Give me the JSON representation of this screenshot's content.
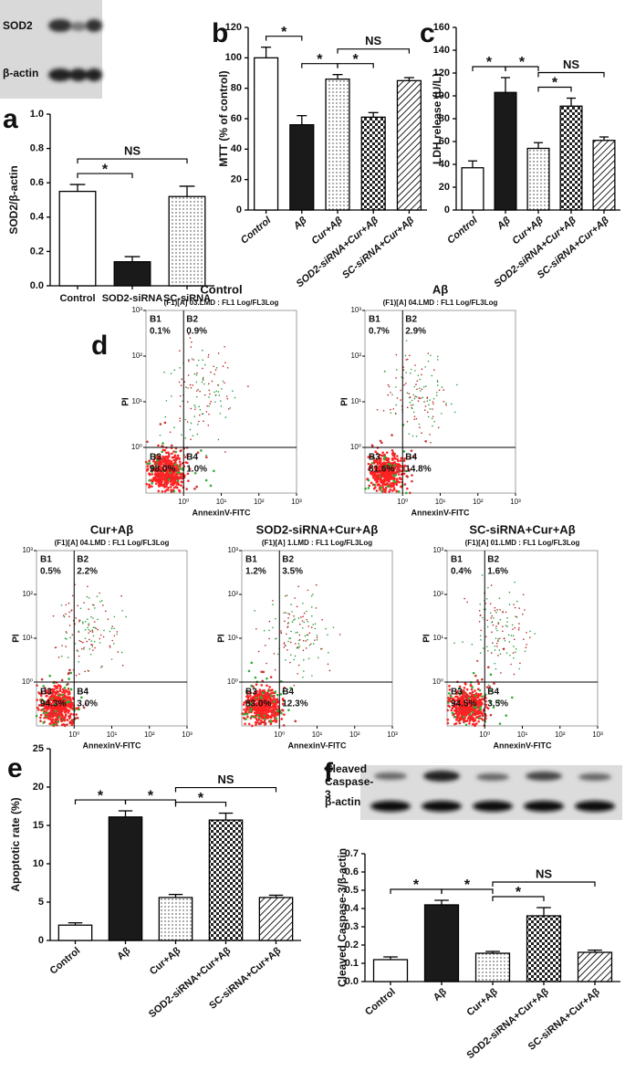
{
  "chart_data": [
    {
      "type": "bar",
      "panel": "a",
      "blot_labels": [
        "SOD2",
        "β-actin"
      ],
      "y_label": "SOD2/β-actin",
      "categories": [
        "Control",
        "SOD2-siRNA",
        "SC-siRNA"
      ],
      "values": [
        0.55,
        0.14,
        0.52
      ],
      "errors": [
        0.04,
        0.03,
        0.06
      ],
      "patterns": [
        "white",
        "black",
        "dots"
      ],
      "ylim": [
        0,
        1.0
      ],
      "yticks": [
        {
          "value": 0,
          "label": "0.0"
        },
        0.2,
        0.4,
        0.6,
        0.8,
        {
          "value": 1,
          "label": "1.0"
        }
      ],
      "brackets": [
        {
          "label": "*",
          "from": 0,
          "to": 1
        },
        {
          "label": "NS",
          "from": 0,
          "to": 2
        }
      ]
    },
    {
      "type": "bar",
      "panel": "b",
      "y_label": "MTT (% of control)",
      "categories": [
        "Control",
        "Aβ",
        "Cur+Aβ",
        "SOD2-siRNA+Cur+Aβ",
        "SC-siRNA+Cur+Aβ"
      ],
      "values": [
        100,
        56,
        86,
        61,
        85
      ],
      "errors": [
        7,
        6,
        3,
        3,
        2
      ],
      "patterns": [
        "white",
        "black",
        "dots",
        "checker",
        "hatch"
      ],
      "ylim": [
        0,
        120
      ],
      "yticks": [
        0,
        20,
        40,
        60,
        80,
        100,
        120
      ],
      "brackets": [
        {
          "label": "*",
          "from": 0,
          "to": 1
        },
        {
          "label": "*",
          "from": 1,
          "to": 2
        },
        {
          "label": "*",
          "from": 2,
          "to": 3
        },
        {
          "label": "NS",
          "from": 2,
          "to": 4
        }
      ]
    },
    {
      "type": "bar",
      "panel": "c",
      "y_label": "LDH release (U/L)",
      "categories": [
        "Control",
        "Aβ",
        "Cur+Aβ",
        "SOD2-siRNA+Cur+Aβ",
        "SC-siRNA+Cur+Aβ"
      ],
      "values": [
        37,
        103,
        54,
        91,
        61
      ],
      "errors": [
        6,
        13,
        5,
        7,
        3
      ],
      "patterns": [
        "white",
        "black",
        "dots",
        "checker",
        "hatch"
      ],
      "ylim": [
        0,
        160
      ],
      "yticks": [
        0,
        20,
        40,
        60,
        80,
        100,
        120,
        140,
        160
      ],
      "brackets": [
        {
          "label": "*",
          "from": 0,
          "to": 1
        },
        {
          "label": "*",
          "from": 1,
          "to": 2
        },
        {
          "label": "*",
          "from": 2,
          "to": 3
        },
        {
          "label": "NS",
          "from": 2,
          "to": 4
        }
      ]
    },
    {
      "type": "flow",
      "panel": "d",
      "title": "Control",
      "subtitle": "(F1)[A] 03.LMD : FL1 Log/FL3Log",
      "x_label": "AnnexinV-FITC",
      "y_label": "PI",
      "log_scale": true,
      "quadrants": [
        "B1",
        "B2",
        "B3",
        "B4"
      ],
      "values": [
        0.1,
        0.9,
        98.0,
        1.0
      ],
      "value_labels": [
        "0.1%",
        "0.9%",
        "98.0%",
        "1.0%"
      ],
      "xlim": [
        0.1,
        1000
      ],
      "ylim": [
        0.1,
        1000
      ],
      "xticks": [
        {
          "value": 1,
          "label": "10⁰"
        },
        {
          "value": 10,
          "label": "10¹"
        },
        {
          "value": 100,
          "label": "10²"
        },
        {
          "value": 1000,
          "label": "10³"
        }
      ],
      "yticks": [
        {
          "value": 1,
          "label": "10⁰"
        },
        {
          "value": 10,
          "label": "10¹"
        },
        {
          "value": 100,
          "label": "10²"
        },
        {
          "value": 1000,
          "label": "10³"
        }
      ]
    },
    {
      "type": "flow",
      "title": "Aβ",
      "subtitle": "(F1)[A] 04.LMD : FL1 Log/FL3Log",
      "x_label": "AnnexinV-FITC",
      "y_label": "PI",
      "log_scale": true,
      "quadrants": [
        "B1",
        "B2",
        "B3",
        "B4"
      ],
      "values": [
        0.7,
        2.9,
        81.6,
        14.8
      ],
      "value_labels": [
        "0.7%",
        "2.9%",
        "81.6%",
        "14.8%"
      ],
      "xlim": [
        0.1,
        1000
      ],
      "ylim": [
        0.1,
        1000
      ],
      "xticks": [
        {
          "value": 1,
          "label": "10⁰"
        },
        {
          "value": 10,
          "label": "10¹"
        },
        {
          "value": 100,
          "label": "10²"
        },
        {
          "value": 1000,
          "label": "10³"
        }
      ],
      "yticks": [
        {
          "value": 1,
          "label": "10⁰"
        },
        {
          "value": 10,
          "label": "10¹"
        },
        {
          "value": 100,
          "label": "10²"
        },
        {
          "value": 1000,
          "label": "10³"
        }
      ]
    },
    {
      "type": "flow",
      "title": "Cur+Aβ",
      "subtitle": "(F1)[A] 04.LMD : FL1 Log/FL3Log",
      "x_label": "AnnexinV-FITC",
      "y_label": "PI",
      "log_scale": true,
      "quadrants": [
        "B1",
        "B2",
        "B3",
        "B4"
      ],
      "values": [
        0.5,
        2.2,
        94.3,
        3.0
      ],
      "value_labels": [
        "0.5%",
        "2.2%",
        "94.3%",
        "3.0%"
      ],
      "xlim": [
        0.1,
        1000
      ],
      "ylim": [
        0.1,
        1000
      ],
      "xticks": [
        {
          "value": 1,
          "label": "10⁰"
        },
        {
          "value": 10,
          "label": "10¹"
        },
        {
          "value": 100,
          "label": "10²"
        },
        {
          "value": 1000,
          "label": "10³"
        }
      ],
      "yticks": [
        {
          "value": 1,
          "label": "10⁰"
        },
        {
          "value": 10,
          "label": "10¹"
        },
        {
          "value": 100,
          "label": "10²"
        },
        {
          "value": 1000,
          "label": "10³"
        }
      ]
    },
    {
      "type": "flow",
      "title": "SOD2-siRNA+Cur+Aβ",
      "subtitle": "(F1)[A] 1.LMD : FL1 Log/FL3Log",
      "x_label": "AnnexinV-FITC",
      "y_label": "PI",
      "log_scale": true,
      "quadrants": [
        "B1",
        "B2",
        "B3",
        "B4"
      ],
      "values": [
        1.2,
        3.5,
        83.0,
        12.3
      ],
      "value_labels": [
        "1.2%",
        "3.5%",
        "83.0%",
        "12.3%"
      ],
      "xlim": [
        0.1,
        1000
      ],
      "ylim": [
        0.1,
        1000
      ],
      "xticks": [
        {
          "value": 1,
          "label": "10⁰"
        },
        {
          "value": 10,
          "label": "10¹"
        },
        {
          "value": 100,
          "label": "10²"
        },
        {
          "value": 1000,
          "label": "10³"
        }
      ],
      "yticks": [
        {
          "value": 1,
          "label": "10⁰"
        },
        {
          "value": 10,
          "label": "10¹"
        },
        {
          "value": 100,
          "label": "10²"
        },
        {
          "value": 1000,
          "label": "10³"
        }
      ]
    },
    {
      "type": "flow",
      "title": "SC-siRNA+Cur+Aβ",
      "subtitle": "(F1)[A] 01.LMD : FL1 Log/FL3Log",
      "x_label": "AnnexinV-FITC",
      "y_label": "PI",
      "log_scale": true,
      "quadrants": [
        "B1",
        "B2",
        "B3",
        "B4"
      ],
      "values": [
        0.4,
        1.6,
        94.5,
        3.5
      ],
      "value_labels": [
        "0.4%",
        "1.6%",
        "94.5%",
        "3.5%"
      ],
      "xlim": [
        0.1,
        1000
      ],
      "ylim": [
        0.1,
        1000
      ],
      "xticks": [
        {
          "value": 1,
          "label": "10⁰"
        },
        {
          "value": 10,
          "label": "10¹"
        },
        {
          "value": 100,
          "label": "10²"
        },
        {
          "value": 1000,
          "label": "10³"
        }
      ],
      "yticks": [
        {
          "value": 1,
          "label": "10⁰"
        },
        {
          "value": 10,
          "label": "10¹"
        },
        {
          "value": 100,
          "label": "10²"
        },
        {
          "value": 1000,
          "label": "10³"
        }
      ]
    },
    {
      "type": "bar",
      "panel": "e",
      "y_label": "Apoptotic rate (%)",
      "categories": [
        "Control",
        "Aβ",
        "Cur+Aβ",
        "SOD2-siRNA+Cur+Aβ",
        "SC-siRNA+Cur+Aβ"
      ],
      "values": [
        2.0,
        16.1,
        5.6,
        15.7,
        5.6
      ],
      "errors": [
        0.3,
        0.8,
        0.4,
        0.9,
        0.3
      ],
      "patterns": [
        "white",
        "black",
        "dots",
        "checker",
        "hatch"
      ],
      "ylim": [
        0,
        25
      ],
      "yticks": [
        0,
        5,
        10,
        15,
        20,
        25
      ],
      "brackets": [
        {
          "label": "*",
          "from": 0,
          "to": 1
        },
        {
          "label": "*",
          "from": 1,
          "to": 2
        },
        {
          "label": "*",
          "from": 2,
          "to": 3
        },
        {
          "label": "NS",
          "from": 2,
          "to": 4
        }
      ]
    },
    {
      "type": "bar",
      "panel": "f",
      "blot_labels": [
        "Cleaved Caspase-3",
        "β-actin"
      ],
      "y_label": "Cleaved Caspase-3/β-actin",
      "categories": [
        "Control",
        "Aβ",
        "Cur+Aβ",
        "SOD2-siRNA+Cur+Aβ",
        "SC-siRNA+Cur+Aβ"
      ],
      "values": [
        0.12,
        0.42,
        0.155,
        0.36,
        0.16
      ],
      "errors": [
        0.015,
        0.025,
        0.01,
        0.045,
        0.012
      ],
      "patterns": [
        "white",
        "black",
        "dots",
        "checker",
        "hatch"
      ],
      "ylim": [
        0,
        0.7
      ],
      "yticks": [
        {
          "value": 0,
          "label": "0.0"
        },
        0.1,
        0.2,
        0.3,
        0.4,
        0.5,
        0.6,
        0.7
      ],
      "brackets": [
        {
          "label": "*",
          "from": 0,
          "to": 1
        },
        {
          "label": "*",
          "from": 1,
          "to": 2
        },
        {
          "label": "*",
          "from": 2,
          "to": 3
        },
        {
          "label": "NS",
          "from": 2,
          "to": 4
        }
      ]
    }
  ]
}
